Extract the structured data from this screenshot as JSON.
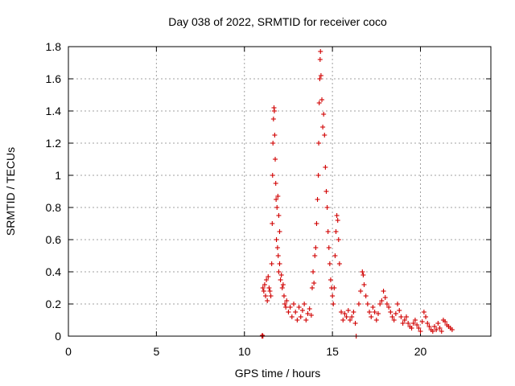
{
  "chart_data": {
    "type": "scatter",
    "title": "Day 038 of 2022, SRMTID for receiver coco",
    "xlabel": "GPS time / hours",
    "ylabel": "SRMTID / TECUs",
    "xlim": [
      0,
      24
    ],
    "ylim": [
      0,
      1.8
    ],
    "xticks": [
      0,
      5,
      10,
      15,
      20
    ],
    "xtick_labels": [
      "0",
      "5",
      "10",
      "15",
      "20"
    ],
    "yticks": [
      0,
      0.2,
      0.4,
      0.6,
      0.8,
      1.0,
      1.2,
      1.4,
      1.6,
      1.8
    ],
    "ytick_labels": [
      "0",
      "0.2",
      "0.4",
      "0.6",
      "0.8",
      "1",
      "1.2",
      "1.4",
      "1.6",
      "1.8"
    ],
    "grid": true,
    "marker": "+",
    "marker_color": "#d00000",
    "series": [
      {
        "name": "SRMTID",
        "points": [
          [
            11.0,
            0.0
          ],
          [
            11.05,
            0.0
          ],
          [
            11.02,
            0.005
          ],
          [
            11.05,
            0.3
          ],
          [
            11.1,
            0.28
          ],
          [
            11.15,
            0.32
          ],
          [
            11.2,
            0.25
          ],
          [
            11.25,
            0.35
          ],
          [
            11.3,
            0.22
          ],
          [
            11.35,
            0.37
          ],
          [
            11.4,
            0.3
          ],
          [
            11.45,
            0.28
          ],
          [
            11.5,
            0.25
          ],
          [
            11.55,
            0.45
          ],
          [
            11.58,
            0.7
          ],
          [
            11.6,
            1.0
          ],
          [
            11.62,
            1.2
          ],
          [
            11.65,
            1.35
          ],
          [
            11.68,
            1.42
          ],
          [
            11.7,
            1.4
          ],
          [
            11.72,
            1.25
          ],
          [
            11.75,
            1.1
          ],
          [
            11.78,
            0.95
          ],
          [
            11.8,
            0.85
          ],
          [
            11.85,
            0.8
          ],
          [
            11.9,
            0.87
          ],
          [
            11.95,
            0.75
          ],
          [
            12.0,
            0.65
          ],
          [
            11.82,
            0.6
          ],
          [
            11.88,
            0.55
          ],
          [
            11.92,
            0.5
          ],
          [
            11.95,
            0.4
          ],
          [
            12.0,
            0.45
          ],
          [
            12.05,
            0.35
          ],
          [
            12.1,
            0.38
          ],
          [
            12.15,
            0.3
          ],
          [
            12.2,
            0.32
          ],
          [
            12.25,
            0.25
          ],
          [
            12.3,
            0.2
          ],
          [
            12.35,
            0.18
          ],
          [
            12.4,
            0.22
          ],
          [
            12.5,
            0.15
          ],
          [
            12.6,
            0.18
          ],
          [
            12.7,
            0.12
          ],
          [
            12.8,
            0.2
          ],
          [
            12.9,
            0.15
          ],
          [
            13.0,
            0.1
          ],
          [
            13.1,
            0.18
          ],
          [
            13.2,
            0.12
          ],
          [
            13.3,
            0.16
          ],
          [
            13.4,
            0.2
          ],
          [
            13.5,
            0.1
          ],
          [
            13.6,
            0.14
          ],
          [
            13.7,
            0.17
          ],
          [
            13.8,
            0.13
          ],
          [
            13.85,
            0.3
          ],
          [
            13.9,
            0.4
          ],
          [
            13.95,
            0.33
          ],
          [
            14.0,
            0.5
          ],
          [
            14.05,
            0.55
          ],
          [
            14.1,
            0.7
          ],
          [
            14.15,
            0.85
          ],
          [
            14.2,
            1.0
          ],
          [
            14.22,
            1.2
          ],
          [
            14.25,
            1.45
          ],
          [
            14.28,
            1.6
          ],
          [
            14.3,
            1.72
          ],
          [
            14.32,
            1.77
          ],
          [
            14.35,
            1.62
          ],
          [
            14.4,
            1.47
          ],
          [
            14.45,
            1.3
          ],
          [
            14.5,
            1.38
          ],
          [
            14.55,
            1.25
          ],
          [
            14.6,
            1.05
          ],
          [
            14.65,
            0.9
          ],
          [
            14.7,
            0.8
          ],
          [
            14.75,
            0.65
          ],
          [
            14.8,
            0.55
          ],
          [
            14.85,
            0.45
          ],
          [
            14.9,
            0.35
          ],
          [
            14.95,
            0.3
          ],
          [
            15.0,
            0.25
          ],
          [
            15.05,
            0.2
          ],
          [
            15.1,
            0.3
          ],
          [
            15.15,
            0.5
          ],
          [
            15.2,
            0.65
          ],
          [
            15.25,
            0.75
          ],
          [
            15.3,
            0.72
          ],
          [
            15.35,
            0.6
          ],
          [
            15.4,
            0.45
          ],
          [
            15.5,
            0.15
          ],
          [
            15.6,
            0.1
          ],
          [
            15.7,
            0.14
          ],
          [
            15.8,
            0.12
          ],
          [
            15.9,
            0.16
          ],
          [
            16.0,
            0.1
          ],
          [
            16.1,
            0.12
          ],
          [
            16.2,
            0.15
          ],
          [
            16.3,
            0.08
          ],
          [
            16.35,
            0.0
          ],
          [
            16.5,
            0.2
          ],
          [
            16.6,
            0.28
          ],
          [
            16.7,
            0.4
          ],
          [
            16.75,
            0.38
          ],
          [
            16.8,
            0.32
          ],
          [
            16.9,
            0.25
          ],
          [
            17.0,
            0.2
          ],
          [
            17.1,
            0.15
          ],
          [
            17.2,
            0.12
          ],
          [
            17.3,
            0.18
          ],
          [
            17.4,
            0.15
          ],
          [
            17.5,
            0.1
          ],
          [
            17.6,
            0.14
          ],
          [
            17.7,
            0.2
          ],
          [
            17.8,
            0.22
          ],
          [
            17.9,
            0.28
          ],
          [
            18.0,
            0.24
          ],
          [
            18.1,
            0.2
          ],
          [
            18.2,
            0.18
          ],
          [
            18.3,
            0.15
          ],
          [
            18.4,
            0.12
          ],
          [
            18.5,
            0.1
          ],
          [
            18.6,
            0.14
          ],
          [
            18.7,
            0.2
          ],
          [
            18.8,
            0.16
          ],
          [
            18.9,
            0.12
          ],
          [
            19.0,
            0.08
          ],
          [
            19.1,
            0.1
          ],
          [
            19.2,
            0.12
          ],
          [
            19.3,
            0.08
          ],
          [
            19.4,
            0.06
          ],
          [
            19.5,
            0.05
          ],
          [
            19.6,
            0.08
          ],
          [
            19.7,
            0.1
          ],
          [
            19.8,
            0.07
          ],
          [
            19.9,
            0.05
          ],
          [
            20.0,
            0.03
          ],
          [
            20.1,
            0.09
          ],
          [
            20.2,
            0.15
          ],
          [
            20.3,
            0.12
          ],
          [
            20.4,
            0.08
          ],
          [
            20.5,
            0.06
          ],
          [
            20.6,
            0.04
          ],
          [
            20.7,
            0.03
          ],
          [
            20.8,
            0.06
          ],
          [
            20.9,
            0.04
          ],
          [
            21.0,
            0.08
          ],
          [
            21.1,
            0.05
          ],
          [
            21.2,
            0.03
          ],
          [
            21.3,
            0.1
          ],
          [
            21.4,
            0.09
          ],
          [
            21.5,
            0.07
          ],
          [
            21.6,
            0.06
          ],
          [
            21.7,
            0.05
          ],
          [
            21.8,
            0.04
          ]
        ]
      }
    ]
  }
}
